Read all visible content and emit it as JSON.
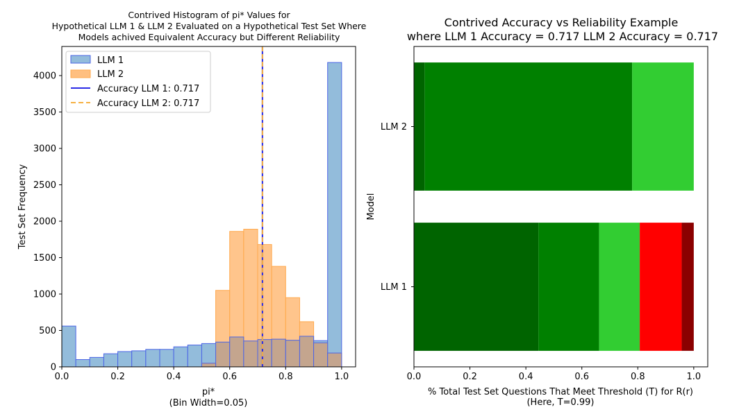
{
  "chart_data": [
    {
      "type": "bar",
      "title_lines": [
        "Contrived Histogram of pi* Values for",
        "Hypothetical LLM 1 & LLM 2 Evaluated on a Hypothetical Test Set Where",
        "Models achived Equivalent Accuracy but Different Reliability"
      ],
      "xlabel_lines": [
        "pi*",
        "(Bin Width=0.05)"
      ],
      "ylabel": "Test Set Frequency",
      "xlim": [
        0,
        1.05
      ],
      "ylim": [
        0,
        4400
      ],
      "xticks": [
        "0.0",
        "0.2",
        "0.4",
        "0.6",
        "0.8",
        "1.0"
      ],
      "yticks": [
        "0",
        "500",
        "1000",
        "1500",
        "2000",
        "2500",
        "3000",
        "3500",
        "4000"
      ],
      "bin_width": 0.05,
      "bin_starts": [
        0.0,
        0.05,
        0.1,
        0.15,
        0.2,
        0.25,
        0.3,
        0.35,
        0.4,
        0.45,
        0.5,
        0.55,
        0.6,
        0.65,
        0.7,
        0.75,
        0.8,
        0.85,
        0.9,
        0.95
      ],
      "series": [
        {
          "name": "LLM 1",
          "values": [
            560,
            100,
            130,
            180,
            210,
            220,
            240,
            240,
            275,
            300,
            320,
            340,
            410,
            355,
            375,
            380,
            365,
            420,
            360,
            4180
          ],
          "fill": "#93bcdb",
          "edge": "#4b64e6"
        },
        {
          "name": "LLM 2",
          "values": [
            0,
            0,
            0,
            0,
            0,
            0,
            0,
            0,
            0,
            0,
            50,
            1050,
            1860,
            1890,
            1680,
            1380,
            950,
            620,
            330,
            190
          ],
          "fill": "#ffbf80",
          "edge": "#ffa94d"
        }
      ],
      "lines": [
        {
          "name": "Accuracy LLM 1: 0.717",
          "x": 0.717,
          "color": "#2a2ae6",
          "style": "solid"
        },
        {
          "name": "Accuracy LLM 2: 0.717",
          "x": 0.717,
          "color": "#f5b041",
          "style": "dashed"
        }
      ],
      "legend_position": "upper-left"
    },
    {
      "type": "bar",
      "orientation": "horizontal-stacked",
      "title_lines": [
        "Contrived Accuracy vs Reliability Example",
        "where LLM 1 Accuracy = 0.717 LLM 2 Accuracy = 0.717"
      ],
      "xlabel_lines": [
        "% Total Test Set Questions That Meet Threshold (T) for R(r)",
        "(Here, T=0.99)"
      ],
      "ylabel": "Model",
      "xlim": [
        0,
        1.05
      ],
      "xticks": [
        "0.0",
        "0.2",
        "0.4",
        "0.6",
        "0.8",
        "1.0"
      ],
      "categories": [
        "LLM 1",
        "LLM 2"
      ],
      "stacks": [
        {
          "category": "LLM 1",
          "segments": [
            {
              "value": 0.445,
              "color": "#006400"
            },
            {
              "value": 0.217,
              "color": "#008000"
            },
            {
              "value": 0.145,
              "color": "#32cd32"
            },
            {
              "value": 0.15,
              "color": "#ff0000"
            },
            {
              "value": 0.043,
              "color": "#8b0000"
            }
          ]
        },
        {
          "category": "LLM 2",
          "segments": [
            {
              "value": 0.038,
              "color": "#006400"
            },
            {
              "value": 0.742,
              "color": "#008000"
            },
            {
              "value": 0.22,
              "color": "#32cd32"
            },
            {
              "value": 0.0,
              "color": "#ff0000"
            },
            {
              "value": 0.0,
              "color": "#8b0000"
            }
          ]
        }
      ]
    }
  ]
}
